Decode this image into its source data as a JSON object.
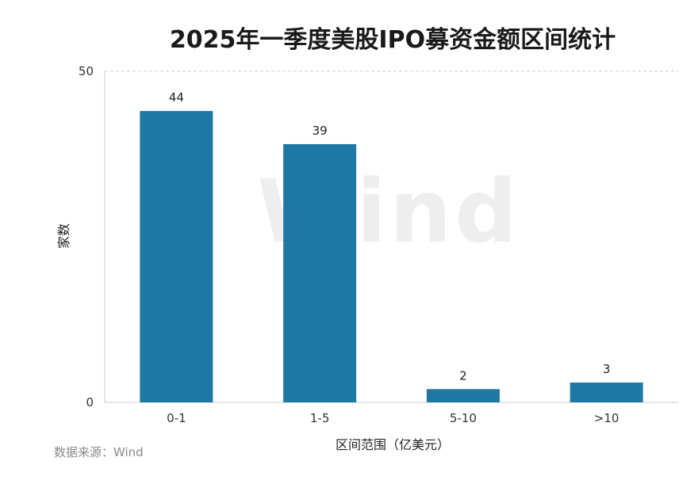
{
  "chart_data": {
    "type": "bar",
    "title": "2025年一季度美股IPO募资金额区间统计",
    "xlabel": "区间范围（亿美元）",
    "ylabel": "家数",
    "categories": [
      "0-1",
      "1-5",
      "5-10",
      ">10"
    ],
    "values": [
      44,
      39,
      2,
      3
    ],
    "ylim": [
      0,
      50
    ],
    "yticks": [
      0,
      50
    ],
    "bar_color": "#1f77a4",
    "grid": "top dashed line only",
    "legend": "none"
  },
  "watermark": "Wind",
  "source": "数据来源：Wind"
}
